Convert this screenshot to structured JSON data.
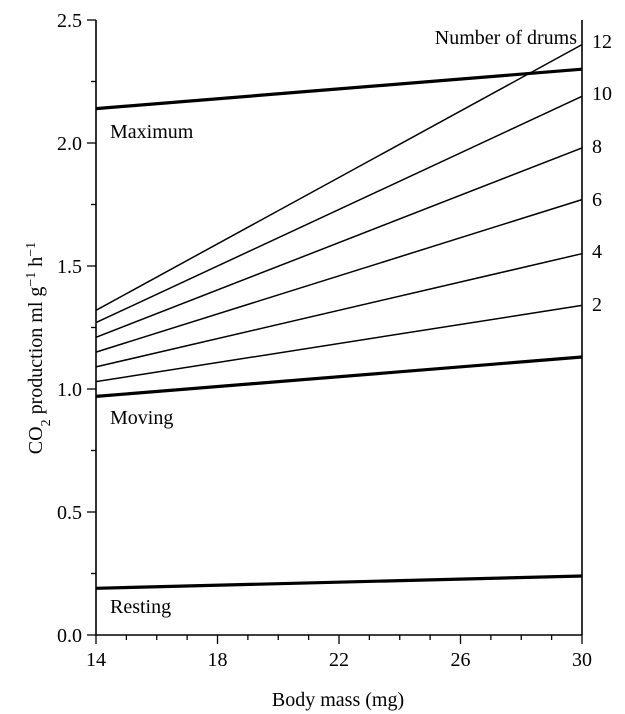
{
  "chart_data": {
    "type": "line",
    "xlabel": "Body mass (mg)",
    "ylabel_parts": {
      "co": "CO",
      "sub2": "2",
      "text": " production ml g",
      "sup1": "−1",
      "h": " h",
      "sup2": "−1"
    },
    "xlim": [
      14,
      30
    ],
    "ylim": [
      0,
      2.5
    ],
    "x_ticks": [
      14,
      18,
      22,
      26,
      30
    ],
    "x_tick_labels": [
      "14",
      "18",
      "22",
      "26",
      "30"
    ],
    "y_ticks": [
      0,
      0.5,
      1.0,
      1.5,
      2.0,
      2.5
    ],
    "y_tick_labels": [
      "0.0",
      "0.5",
      "1.0",
      "1.5",
      "2.0",
      "2.5"
    ],
    "annotation_title": "Number of drums",
    "series": [
      {
        "name": "Maximum",
        "style": "thick",
        "x": [
          14,
          30
        ],
        "y": [
          2.14,
          2.3
        ]
      },
      {
        "name": "Moving",
        "style": "thick",
        "x": [
          14,
          30
        ],
        "y": [
          0.97,
          1.13
        ]
      },
      {
        "name": "Resting",
        "style": "thick",
        "x": [
          14,
          30
        ],
        "y": [
          0.19,
          0.24
        ]
      },
      {
        "drums": "2",
        "style": "thin",
        "x": [
          14,
          30
        ],
        "y": [
          1.03,
          1.34
        ]
      },
      {
        "drums": "4",
        "style": "thin",
        "x": [
          14,
          30
        ],
        "y": [
          1.09,
          1.55
        ]
      },
      {
        "drums": "6",
        "style": "thin",
        "x": [
          14,
          30
        ],
        "y": [
          1.15,
          1.77
        ]
      },
      {
        "drums": "8",
        "style": "thin",
        "x": [
          14,
          30
        ],
        "y": [
          1.21,
          1.98
        ]
      },
      {
        "drums": "10",
        "style": "thin",
        "x": [
          14,
          30
        ],
        "y": [
          1.27,
          2.19
        ]
      },
      {
        "drums": "12",
        "style": "thin",
        "x": [
          14,
          30
        ],
        "y": [
          1.32,
          2.4
        ]
      }
    ]
  }
}
